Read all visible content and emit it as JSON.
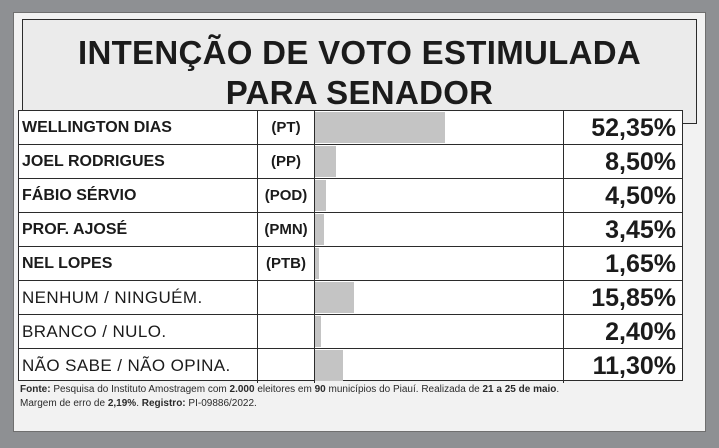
{
  "title": {
    "line1": "INTENÇÃO DE VOTO ESTIMULADA",
    "line2": "PARA SENADOR"
  },
  "chart_data": {
    "type": "bar",
    "title": "INTENÇÃO DE VOTO ESTIMULADA PARA SENADOR",
    "categories": [
      "WELLINGTON DIAS",
      "JOEL RODRIGUES",
      "FÁBIO SÉRVIO",
      "PROF. AJOSÉ",
      "NEL LOPES",
      "NENHUM / NINGUÉM.",
      "BRANCO / NULO.",
      "NÃO SABE / NÃO OPINA."
    ],
    "parties": [
      "(PT)",
      "(PP)",
      "(POD)",
      "(PMN)",
      "(PTB)",
      "",
      "",
      ""
    ],
    "values": [
      52.35,
      8.5,
      4.5,
      3.45,
      1.65,
      15.85,
      2.4,
      11.3
    ],
    "labels": [
      "52,35%",
      "8,50%",
      "4,50%",
      "3,45%",
      "1,65%",
      "15,85%",
      "2,40%",
      "11,30%"
    ],
    "is_candidate": [
      true,
      true,
      true,
      true,
      true,
      false,
      false,
      false
    ],
    "xlim": [
      0,
      100
    ],
    "bar_color": "#c4c4c4"
  },
  "footer": {
    "fonte_label": "Fonte:",
    "t1": " Pesquisa do Instituto Amostragem com ",
    "b1": "2.000",
    "t2": " eleitores em ",
    "b2": "90",
    "t3": " municípios do Piauí. Realizada de ",
    "b3": "21 a 25 de maio",
    "t4": ".",
    "t5": "Margem de erro de ",
    "b4": "2,19%",
    "t6": ". ",
    "registro_label": "Registro:",
    "t7": " PI-09886/2022."
  }
}
